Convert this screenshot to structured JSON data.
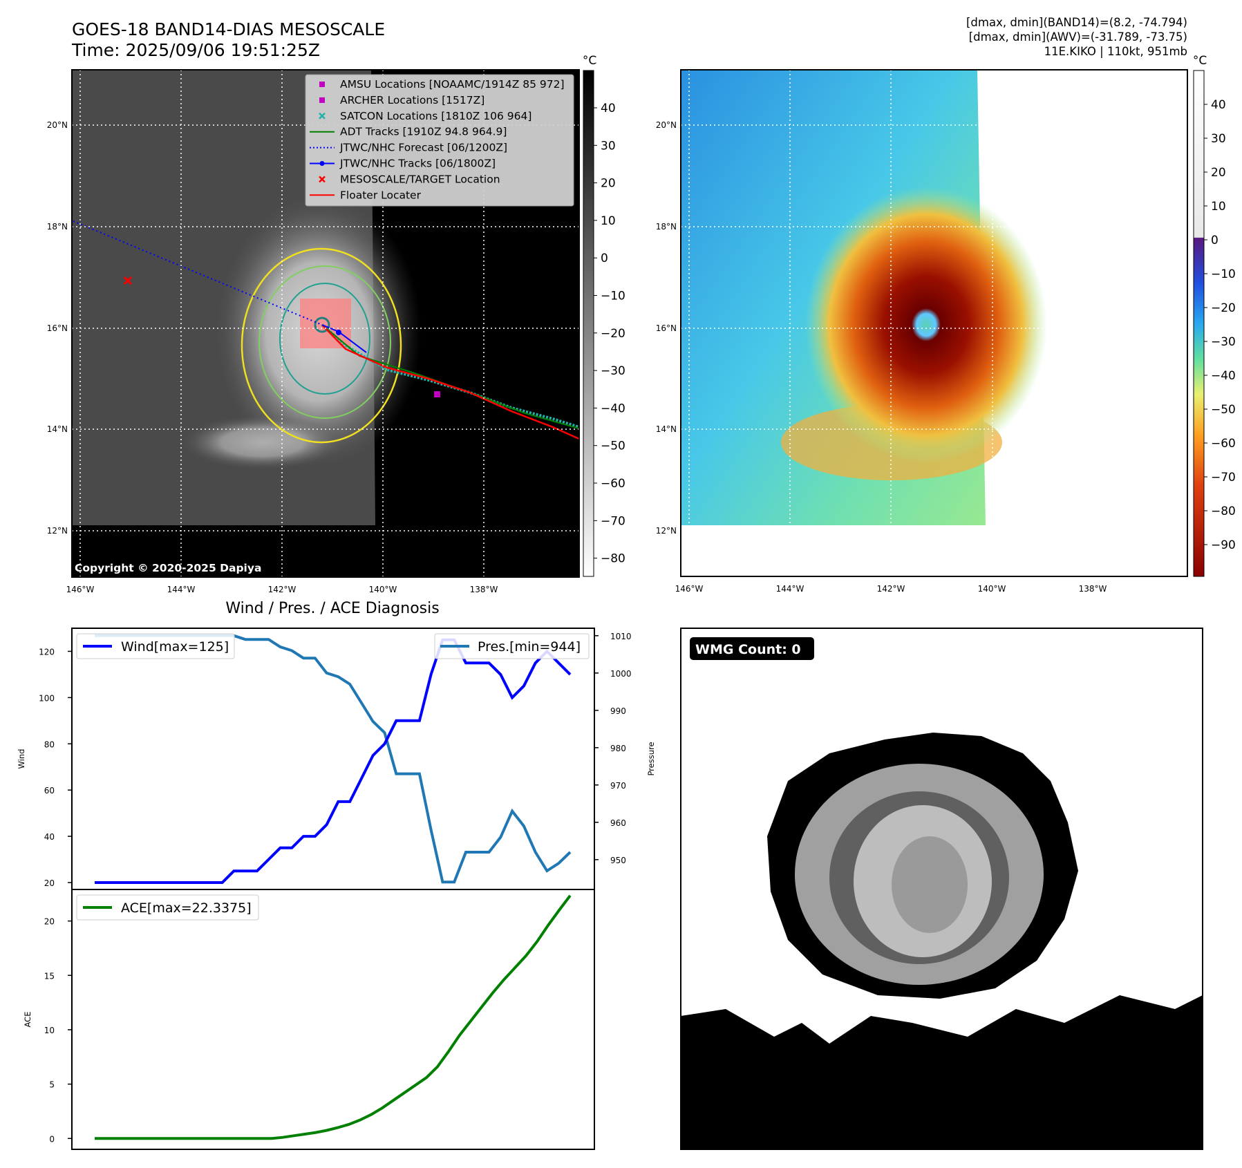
{
  "header": {
    "title_line1": "GOES-18 BAND14-DIAS MESOSCALE",
    "title_line2": "Time: 2025/09/06 19:51:25Z",
    "right_line1": "[dmax, dmin](BAND14)=(8.2, -74.794)",
    "right_line2": "[dmax, dmin](AWV)=(-31.789, -73.75)",
    "right_line3": "11E.KIKO | 110kt, 951mb"
  },
  "copyright": "Copyright © 2020-2025 Dapiya",
  "map_axes": {
    "lon_labels": [
      "146°W",
      "144°W",
      "142°W",
      "140°W",
      "138°W"
    ],
    "lat_labels": [
      "20°N",
      "18°N",
      "16°N",
      "14°N",
      "12°N"
    ]
  },
  "colorbar_left": {
    "unit": "°C",
    "ticks": [
      "40",
      "30",
      "20",
      "10",
      "0",
      "−10",
      "−20",
      "−30",
      "−40",
      "−50",
      "−60",
      "−70",
      "−80"
    ]
  },
  "colorbar_right": {
    "unit": "°C",
    "ticks": [
      "40",
      "30",
      "20",
      "10",
      "0",
      "−10",
      "−20",
      "−30",
      "−40",
      "−50",
      "−60",
      "−70",
      "−80",
      "−90"
    ]
  },
  "map_legend": [
    {
      "label": "AMSU Locations [NOAAMC/1914Z 85 972]",
      "marker": "square",
      "color": "#c000c0"
    },
    {
      "label": "ARCHER Locations [1517Z]",
      "marker": "square",
      "color": "#c000c0"
    },
    {
      "label": "SATCON Locations [1810Z 106 964]",
      "marker": "x",
      "color": "#20b2aa"
    },
    {
      "label": "ADT Tracks [1910Z 94.8 964.9]",
      "marker": "line",
      "color": "#008000"
    },
    {
      "label": "JTWC/NHC Forecast [06/1200Z]",
      "marker": "dotted",
      "color": "#0000ff"
    },
    {
      "label": "JTWC/NHC Tracks [06/1800Z]",
      "marker": "line-dot",
      "color": "#0000ff"
    },
    {
      "label": "MESOSCALE/TARGET Location",
      "marker": "x",
      "color": "#ff0000"
    },
    {
      "label": "Floater Locater",
      "marker": "line",
      "color": "#ff0000"
    }
  ],
  "diag_title": "Wind / Pres. / ACE Diagnosis",
  "wmg_label": "WMG Count: 0",
  "colors": {
    "wind": "#0000ff",
    "pressure": "#1f77b4",
    "ace": "#008000"
  },
  "chart_data": [
    {
      "type": "line",
      "ylabel": "Wind",
      "y2label": "Pressure",
      "ylim": [
        17,
        130
      ],
      "y2lim": [
        942,
        1012
      ],
      "yticks": [
        20,
        40,
        60,
        80,
        100,
        120
      ],
      "y2ticks": [
        950,
        960,
        970,
        980,
        990,
        1000,
        1010
      ],
      "series": [
        {
          "name": "Wind[max=125]",
          "axis": "left",
          "values": [
            20,
            20,
            20,
            20,
            20,
            20,
            20,
            20,
            20,
            20,
            20,
            20,
            25,
            25,
            25,
            30,
            35,
            35,
            40,
            40,
            45,
            55,
            55,
            65,
            75,
            80,
            90,
            90,
            90,
            110,
            125,
            125,
            115,
            115,
            115,
            110,
            100,
            105,
            115,
            120,
            115,
            110
          ]
        },
        {
          "name": "Pres.[min=944]",
          "axis": "right",
          "values": [
            1010,
            1010,
            1010,
            1010,
            1010,
            1010,
            1010,
            1010,
            1010,
            1010,
            1010,
            1010,
            1010,
            1009,
            1009,
            1009,
            1007,
            1006,
            1004,
            1004,
            1000,
            999,
            997,
            992,
            987,
            984,
            973,
            973,
            973,
            958,
            944,
            944,
            952,
            952,
            952,
            956,
            963,
            959,
            952,
            947,
            949,
            952
          ]
        }
      ]
    },
    {
      "type": "line",
      "ylabel": "ACE",
      "ylim": [
        -1,
        22.9
      ],
      "yticks": [
        0,
        5,
        10,
        15,
        20
      ],
      "series": [
        {
          "name": "ACE[max=22.3375]",
          "values": [
            0,
            0,
            0,
            0,
            0,
            0,
            0,
            0,
            0,
            0,
            0,
            0,
            0,
            0,
            0,
            0,
            0,
            0.1,
            0.25,
            0.4,
            0.55,
            0.75,
            1.0,
            1.3,
            1.7,
            2.2,
            2.8,
            3.5,
            4.2,
            4.9,
            5.6,
            6.6,
            8.0,
            9.5,
            10.8,
            12.1,
            13.4,
            14.6,
            15.7,
            16.8,
            18.1,
            19.6,
            21.0,
            22.3375
          ]
        }
      ]
    }
  ]
}
